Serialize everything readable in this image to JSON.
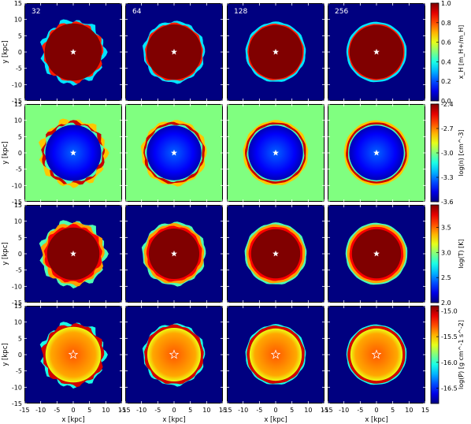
{
  "chart_data": {
    "type": "heatmap",
    "columns": [
      "32",
      "64",
      "128",
      "256"
    ],
    "axis_range": [
      -15,
      15
    ],
    "x_ticks": [
      -15,
      -10,
      -5,
      0,
      5,
      10,
      15
    ],
    "y_ticks": [
      -15,
      -10,
      -5,
      0,
      5,
      10,
      15
    ],
    "xlabel": "x [kpc]",
    "ylabel": "y [kpc]",
    "source_marker": "star at (0, 0)",
    "colormap": "jet",
    "rows": [
      {
        "quantity": "ionized hydrogen fraction",
        "colorbar_label": "x_H [m_H+/m_H]",
        "colorbar_ticks": [
          "0.0",
          "0.2",
          "0.4",
          "0.6",
          "0.8",
          "1.0"
        ],
        "colorbar_range": [
          0.0,
          1.0
        ],
        "background_value": 0.0,
        "interior_value": 1.0,
        "front_radius_kpc": [
          9.5,
          9.2,
          9.0,
          9.0
        ]
      },
      {
        "quantity": "log density",
        "colorbar_label": "log(n) [cm^-3]",
        "colorbar_ticks": [
          "-2.4",
          "-2.7",
          "-3.0",
          "-3.3",
          "-3.6"
        ],
        "colorbar_range": [
          -3.6,
          -2.4
        ],
        "background_value": -3.0,
        "interior_value": -3.6,
        "front_radius_kpc": [
          9.2,
          9.0,
          9.0,
          9.0
        ]
      },
      {
        "quantity": "log temperature",
        "colorbar_label": "log(T) [K]",
        "colorbar_ticks": [
          "3.5",
          "3.0",
          "2.5",
          "2.0"
        ],
        "colorbar_range": [
          2.0,
          3.95
        ],
        "background_value": 2.0,
        "interior_value": 3.95,
        "front_radius_kpc": [
          9.5,
          9.2,
          9.0,
          9.0
        ]
      },
      {
        "quantity": "log pressure",
        "colorbar_label": "log(P) [g cm^-1 s^-2]",
        "colorbar_ticks": [
          "-15.0",
          "-15.5",
          "-16.0",
          "-16.5"
        ],
        "colorbar_range": [
          -16.8,
          -14.9
        ],
        "background_value": -16.8,
        "interior_value": -15.3,
        "front_radius_kpc": [
          9.5,
          9.2,
          9.0,
          9.0
        ]
      }
    ]
  }
}
